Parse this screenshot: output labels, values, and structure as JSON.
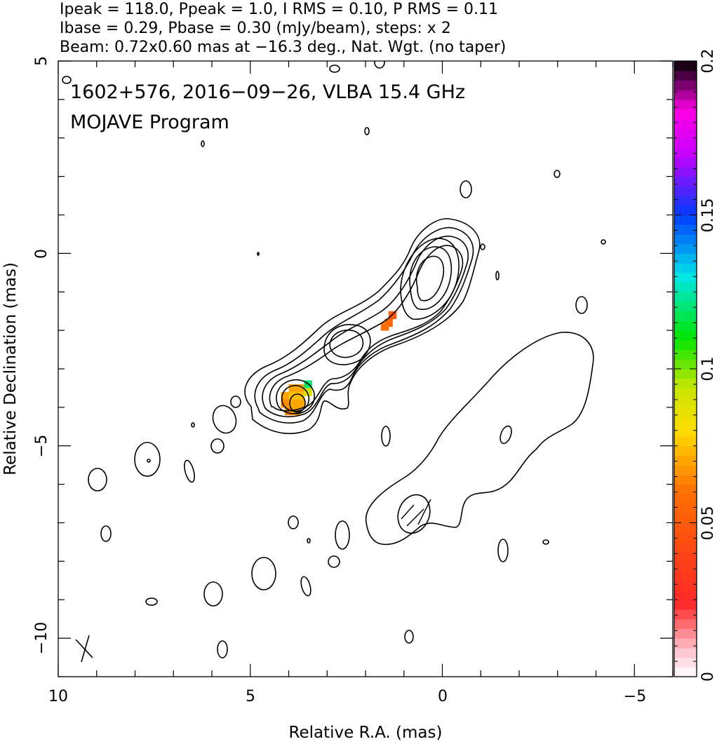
{
  "header": {
    "line1": "Ipeak = 118.0, Ppeak = 1.0, I RMS = 0.10, P RMS = 0.11",
    "line2": "Ibase = 0.29, Pbase = 0.30 (mJy/beam), steps: x 2",
    "line3": "Beam: 0.72x0.60 mas at −16.3 deg., Nat. Wgt. (no taper)"
  },
  "title": {
    "line1": "1602+576, 2016−09−26, VLBA 15.4 GHz",
    "line2": "MOJAVE Program"
  },
  "chart_data": {
    "type": "heatmap",
    "xlabel": "Relative R.A. (mas)",
    "ylabel": "Relative Declination (mas)",
    "xlim": [
      10,
      -6
    ],
    "ylim": [
      -11,
      5
    ],
    "x_ticks": [
      10,
      5,
      0,
      -5
    ],
    "x_tick_labels": [
      "10",
      "5",
      "0",
      "−5"
    ],
    "y_ticks": [
      5,
      0,
      -5,
      -10
    ],
    "y_tick_labels": [
      "5",
      "0",
      "−5",
      "−10"
    ],
    "colorbar": {
      "min": 0,
      "max": 0.2,
      "ticks": [
        0,
        0.05,
        0.1,
        0.15,
        0.2
      ],
      "tick_labels": [
        "0",
        "0.05",
        "0.1",
        "0.15",
        "0.2"
      ]
    },
    "polarization_pixels": [
      {
        "x": 3.9,
        "y": -3.5,
        "value": 0.07
      },
      {
        "x": 3.7,
        "y": -3.5,
        "value": 0.07
      },
      {
        "x": 3.5,
        "y": -3.4,
        "value": 0.12
      },
      {
        "x": 4.1,
        "y": -3.7,
        "value": 0.07
      },
      {
        "x": 3.9,
        "y": -3.7,
        "value": 0.075
      },
      {
        "x": 3.7,
        "y": -3.7,
        "value": 0.075
      },
      {
        "x": 3.5,
        "y": -3.6,
        "value": 0.09
      },
      {
        "x": 4.1,
        "y": -3.9,
        "value": 0.065
      },
      {
        "x": 3.9,
        "y": -3.9,
        "value": 0.07
      },
      {
        "x": 3.7,
        "y": -3.9,
        "value": 0.07
      },
      {
        "x": 4.0,
        "y": -4.1,
        "value": 0.065
      },
      {
        "x": 3.8,
        "y": -4.1,
        "value": 0.07
      },
      {
        "x": 1.3,
        "y": -1.6,
        "value": 0.05
      },
      {
        "x": 1.4,
        "y": -1.8,
        "value": 0.055
      },
      {
        "x": 1.5,
        "y": -1.9,
        "value": 0.06
      }
    ],
    "beam": {
      "major_mas": 0.72,
      "minor_mas": 0.6,
      "pa_deg": -16.3
    }
  }
}
